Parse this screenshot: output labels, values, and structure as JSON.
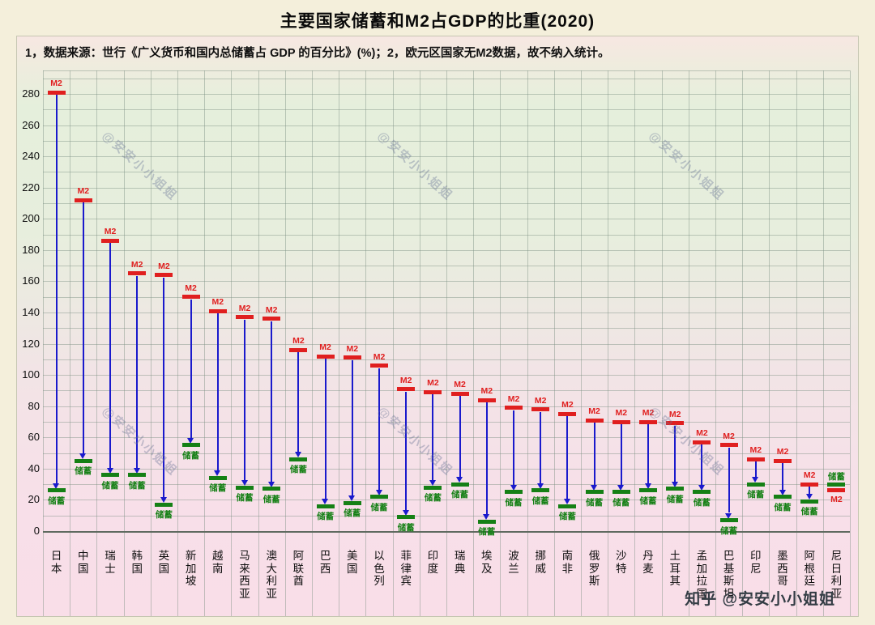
{
  "title": "主要国家储蓄和M2占GDP的比重(2020)",
  "note": "1，数据来源：世行《广义货币和国内总储蓄占 GDP 的百分比》(%)；2，欧元区国家无M2数据，故不纳入统计。",
  "watermark": "@安安小小姐姐",
  "credit": "知乎 @安安小小姐姐",
  "colors": {
    "m2": "#e01f1f",
    "savings": "#158015",
    "arrow": "#1a1acc"
  },
  "chart_data": {
    "type": "bar",
    "title": "主要国家储蓄和M2占GDP的比重(2020)",
    "ylim": [
      0,
      295
    ],
    "ytick_step": 20,
    "grid": true,
    "categories": [
      "日本",
      "中国",
      "瑞士",
      "韩国",
      "英国",
      "新加坡",
      "越南",
      "马来西亚",
      "澳大利亚",
      "阿联酋",
      "巴西",
      "美国",
      "以色列",
      "菲律宾",
      "印度",
      "瑞典",
      "埃及",
      "波兰",
      "挪威",
      "南非",
      "俄罗斯",
      "沙特",
      "丹麦",
      "土耳其",
      "孟加拉国",
      "巴基斯坦",
      "印尼",
      "墨西哥",
      "阿根廷",
      "尼日利亚"
    ],
    "series": [
      {
        "name": "M2",
        "values": [
          281,
          212,
          186,
          165,
          164,
          150,
          141,
          137,
          136,
          116,
          112,
          111,
          106,
          91,
          89,
          88,
          84,
          79,
          78,
          75,
          71,
          70,
          70,
          69,
          57,
          55,
          46,
          45,
          30,
          26
        ]
      },
      {
        "name": "储蓄",
        "values": [
          26,
          45,
          36,
          36,
          17,
          55,
          34,
          28,
          27,
          46,
          16,
          18,
          22,
          9,
          28,
          30,
          6,
          25,
          26,
          16,
          25,
          25,
          26,
          27,
          25,
          7,
          30,
          22,
          19,
          30
        ]
      }
    ]
  }
}
